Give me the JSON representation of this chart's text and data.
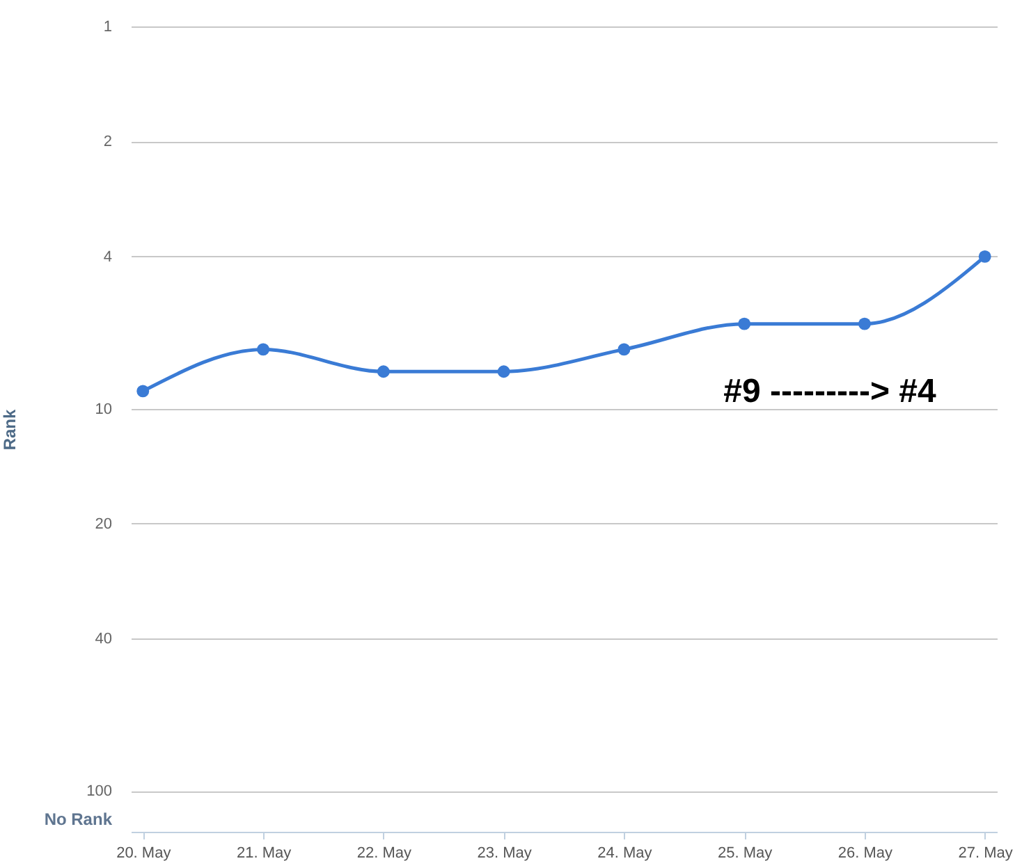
{
  "chart_data": {
    "type": "line",
    "ylabel": "Rank",
    "categories": [
      "20. May",
      "21. May",
      "22. May",
      "23. May",
      "24. May",
      "25. May",
      "26. May",
      "27. May"
    ],
    "series": [
      {
        "color": "#3a7bd5",
        "values": [
          9,
          7,
          8,
          8,
          7,
          6,
          6,
          4
        ]
      }
    ],
    "log": "y",
    "ylim": [
      128,
      1
    ],
    "yticks": [
      1,
      2,
      4,
      10,
      20,
      40,
      100,
      {
        "value": 118,
        "label": "No Rank"
      }
    ],
    "grid": "y",
    "marker": "circle",
    "line_style": "solid",
    "annotations": [
      "#9 ---------> #4"
    ]
  }
}
